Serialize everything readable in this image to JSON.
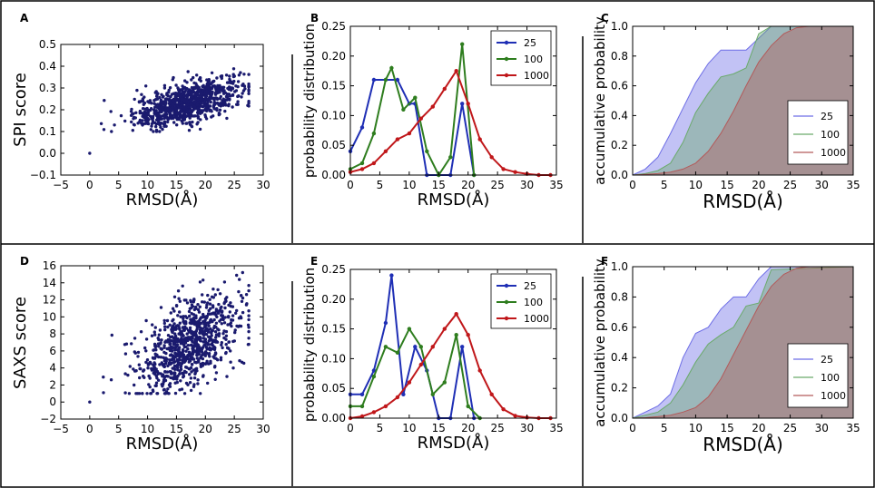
{
  "panels": [
    {
      "id": "A",
      "letter": "A",
      "type": "scatter",
      "xlabel": "RMSD(Å)",
      "ylabel": "SPI score",
      "xlim": [
        -5,
        30
      ],
      "ylim": [
        -0.1,
        0.5
      ],
      "xticks": [
        "−5",
        "0",
        "5",
        "10",
        "15",
        "20",
        "25",
        "30"
      ],
      "yticks": [
        "−0.1",
        "0.0",
        "0.1",
        "0.2",
        "0.3",
        "0.4",
        "0.5"
      ],
      "n_points": 900,
      "color": "#1a1a6e"
    },
    {
      "id": "B",
      "letter": "B",
      "type": "line",
      "xlabel": "RMSD(Å)",
      "ylabel": "probability distribution",
      "xlim": [
        0,
        35
      ],
      "ylim": [
        0,
        0.25
      ],
      "xticks": [
        "0",
        "5",
        "10",
        "15",
        "20",
        "25",
        "30",
        "35"
      ],
      "yticks": [
        "0.00",
        "0.05",
        "0.10",
        "0.15",
        "0.20",
        "0.25"
      ],
      "series": [
        {
          "name": "25",
          "color": "#1f2fb5",
          "x": [
            0,
            2,
            4,
            6,
            8,
            10,
            11,
            13,
            15,
            17,
            19,
            21
          ],
          "y": [
            0.04,
            0.08,
            0.16,
            0.16,
            0.16,
            0.12,
            0.12,
            0.0,
            0.0,
            0.0,
            0.12,
            0.0
          ]
        },
        {
          "name": "100",
          "color": "#2e7d1e",
          "x": [
            0,
            2,
            4,
            6,
            7,
            9,
            11,
            13,
            15,
            17,
            19,
            21
          ],
          "y": [
            0.01,
            0.02,
            0.07,
            0.16,
            0.18,
            0.11,
            0.13,
            0.04,
            0.0,
            0.03,
            0.22,
            0.0
          ]
        },
        {
          "name": "1000",
          "color": "#c0171a",
          "x": [
            0,
            2,
            4,
            6,
            8,
            10,
            12,
            14,
            16,
            18,
            20,
            22,
            24,
            26,
            28,
            30,
            32,
            34
          ],
          "y": [
            0.005,
            0.01,
            0.02,
            0.04,
            0.06,
            0.07,
            0.095,
            0.115,
            0.145,
            0.175,
            0.12,
            0.06,
            0.03,
            0.01,
            0.005,
            0.002,
            0.0,
            0.0
          ]
        }
      ],
      "legend": [
        "25",
        "100",
        "1000"
      ]
    },
    {
      "id": "C",
      "letter": "C",
      "type": "area",
      "xlabel": "RMSD(Å)",
      "ylabel": "accumulative probability",
      "xlim": [
        0,
        35
      ],
      "ylim": [
        0,
        1.0
      ],
      "xticks": [
        "0",
        "5",
        "10",
        "15",
        "20",
        "25",
        "30",
        "35"
      ],
      "yticks": [
        "0.0",
        "0.2",
        "0.4",
        "0.6",
        "0.8",
        "1.0"
      ],
      "series": [
        {
          "name": "25",
          "color": "#6d6de6",
          "x": [
            0,
            2,
            4,
            6,
            8,
            10,
            12,
            14,
            16,
            18,
            20,
            22,
            35
          ],
          "y": [
            0.0,
            0.04,
            0.12,
            0.28,
            0.45,
            0.62,
            0.75,
            0.84,
            0.84,
            0.84,
            0.92,
            1.0,
            1.0
          ]
        },
        {
          "name": "100",
          "color": "#6aaa6a",
          "x": [
            0,
            2,
            4,
            6,
            8,
            10,
            12,
            14,
            16,
            18,
            20,
            22,
            35
          ],
          "y": [
            0.0,
            0.01,
            0.03,
            0.08,
            0.22,
            0.42,
            0.55,
            0.66,
            0.68,
            0.72,
            0.95,
            1.0,
            1.0
          ]
        },
        {
          "name": "1000",
          "color": "#b35a5a",
          "x": [
            0,
            2,
            4,
            6,
            8,
            10,
            12,
            14,
            16,
            18,
            20,
            22,
            24,
            26,
            28,
            35
          ],
          "y": [
            0.0,
            0.005,
            0.01,
            0.02,
            0.04,
            0.08,
            0.16,
            0.28,
            0.43,
            0.6,
            0.76,
            0.87,
            0.95,
            0.99,
            1.0,
            1.0
          ]
        }
      ],
      "legend": [
        "25",
        "100",
        "1000"
      ]
    },
    {
      "id": "D",
      "letter": "D",
      "type": "scatter",
      "xlabel": "RMSD(Å)",
      "ylabel": "SAXS score",
      "xlim": [
        -5,
        30
      ],
      "ylim": [
        -2,
        16
      ],
      "xticks": [
        "−5",
        "0",
        "5",
        "10",
        "15",
        "20",
        "25",
        "30"
      ],
      "yticks": [
        "−2",
        "0",
        "2",
        "4",
        "6",
        "8",
        "10",
        "12",
        "14",
        "16"
      ],
      "n_points": 900,
      "color": "#1a1a6e"
    },
    {
      "id": "E",
      "letter": "E",
      "type": "line",
      "xlabel": "RMSD(Å)",
      "ylabel": "probability distribution",
      "xlim": [
        0,
        35
      ],
      "ylim": [
        0,
        0.25
      ],
      "xticks": [
        "0",
        "5",
        "10",
        "15",
        "20",
        "25",
        "30",
        "35"
      ],
      "yticks": [
        "0.00",
        "0.05",
        "0.10",
        "0.15",
        "0.20",
        "0.25"
      ],
      "series": [
        {
          "name": "25",
          "color": "#1f2fb5",
          "x": [
            0,
            2,
            4,
            6,
            7,
            9,
            11,
            13,
            15,
            17,
            19,
            21
          ],
          "y": [
            0.04,
            0.04,
            0.08,
            0.16,
            0.24,
            0.04,
            0.12,
            0.08,
            0.0,
            0.0,
            0.12,
            0.0
          ]
        },
        {
          "name": "100",
          "color": "#2e7d1e",
          "x": [
            0,
            2,
            4,
            6,
            8,
            10,
            12,
            14,
            16,
            18,
            20,
            22
          ],
          "y": [
            0.02,
            0.02,
            0.07,
            0.12,
            0.11,
            0.15,
            0.12,
            0.04,
            0.06,
            0.14,
            0.02,
            0.0
          ]
        },
        {
          "name": "1000",
          "color": "#c0171a",
          "x": [
            0,
            2,
            4,
            6,
            8,
            10,
            12,
            14,
            16,
            18,
            20,
            22,
            24,
            26,
            28,
            30,
            32,
            34
          ],
          "y": [
            0.0,
            0.003,
            0.01,
            0.02,
            0.035,
            0.06,
            0.09,
            0.12,
            0.15,
            0.175,
            0.14,
            0.08,
            0.04,
            0.015,
            0.004,
            0.001,
            0.0,
            0.0
          ]
        }
      ],
      "legend": [
        "25",
        "100",
        "1000"
      ]
    },
    {
      "id": "F",
      "letter": "F",
      "type": "area",
      "xlabel": "RMSD(Å)",
      "ylabel": "accumulative probability",
      "xlim": [
        0,
        35
      ],
      "ylim": [
        0,
        1.0
      ],
      "xticks": [
        "0",
        "5",
        "10",
        "15",
        "20",
        "25",
        "30",
        "35"
      ],
      "yticks": [
        "0.0",
        "0.2",
        "0.4",
        "0.6",
        "0.8",
        "1.0"
      ],
      "series": [
        {
          "name": "25",
          "color": "#6d6de6",
          "x": [
            0,
            2,
            4,
            6,
            8,
            10,
            12,
            14,
            16,
            18,
            20,
            22,
            35
          ],
          "y": [
            0.0,
            0.04,
            0.08,
            0.16,
            0.4,
            0.56,
            0.6,
            0.72,
            0.8,
            0.8,
            0.92,
            1.0,
            1.0
          ]
        },
        {
          "name": "100",
          "color": "#6aaa6a",
          "x": [
            0,
            2,
            4,
            6,
            8,
            10,
            12,
            14,
            16,
            18,
            20,
            22,
            35
          ],
          "y": [
            0.0,
            0.02,
            0.04,
            0.1,
            0.22,
            0.37,
            0.49,
            0.55,
            0.6,
            0.74,
            0.76,
            0.98,
            1.0
          ]
        },
        {
          "name": "1000",
          "color": "#b35a5a",
          "x": [
            0,
            2,
            4,
            6,
            8,
            10,
            12,
            14,
            16,
            18,
            20,
            22,
            24,
            26,
            28,
            35
          ],
          "y": [
            0.0,
            0.003,
            0.01,
            0.02,
            0.04,
            0.07,
            0.14,
            0.26,
            0.42,
            0.58,
            0.74,
            0.87,
            0.95,
            0.99,
            1.0,
            1.0
          ]
        }
      ],
      "legend": [
        "25",
        "100",
        "1000"
      ]
    }
  ]
}
